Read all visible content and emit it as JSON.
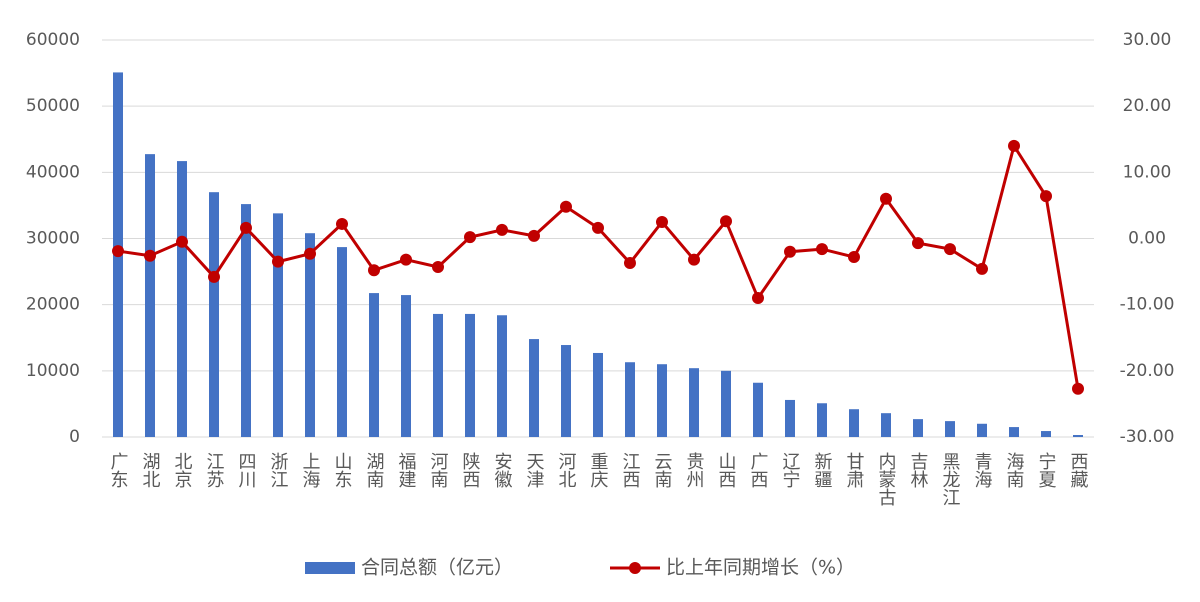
{
  "chart_data": {
    "type": "bar-line",
    "categories": [
      "广东",
      "湖北",
      "北京",
      "江苏",
      "四川",
      "浙江",
      "上海",
      "山东",
      "湖南",
      "福建",
      "河南",
      "陕西",
      "安徽",
      "天津",
      "河北",
      "重庆",
      "江西",
      "云南",
      "贵州",
      "山西",
      "广西",
      "辽宁",
      "新疆",
      "甘肃",
      "内蒙古",
      "吉林",
      "黑龙江",
      "青海",
      "海南",
      "宁夏",
      "西藏"
    ],
    "series": [
      {
        "name": "合同总额（亿元）",
        "color": "#4472c4",
        "type": "bar",
        "values": [
          55100,
          42750,
          41700,
          37000,
          35200,
          33800,
          30800,
          28700,
          21750,
          21450,
          18600,
          18600,
          18400,
          14800,
          13900,
          12700,
          11300,
          11000,
          10400,
          10000,
          8200,
          5600,
          5100,
          4200,
          3600,
          2700,
          2400,
          2000,
          1500,
          900,
          300
        ]
      },
      {
        "name": "比上年同期增长（%）",
        "color": "#c00000",
        "type": "line",
        "axis": "y2",
        "values": [
          -1.9,
          -2.6,
          -0.5,
          -5.8,
          1.6,
          -3.5,
          -2.3,
          2.2,
          -4.8,
          -3.2,
          -4.3,
          0.2,
          1.3,
          0.4,
          4.8,
          1.6,
          -3.7,
          2.5,
          -3.2,
          2.6,
          -9.0,
          -2.0,
          -1.6,
          -2.8,
          6.0,
          -0.7,
          -1.6,
          -4.6,
          14.0,
          6.4,
          -22.7
        ]
      }
    ],
    "ylim": [
      0,
      60000
    ],
    "yticks": [
      0,
      10000,
      20000,
      30000,
      40000,
      50000,
      60000
    ],
    "y2lim": [
      -30,
      30
    ],
    "y2ticks": [
      {
        "value": -30,
        "label": "-30.00"
      },
      {
        "value": -20,
        "label": "-20.00"
      },
      {
        "value": -10,
        "label": "-10.00"
      },
      {
        "value": 0,
        "label": "0.00"
      },
      {
        "value": 10,
        "label": "10.00"
      },
      {
        "value": 20,
        "label": "20.00"
      },
      {
        "value": 30,
        "label": "30.00"
      }
    ],
    "grid": true,
    "legend": "bottom"
  }
}
